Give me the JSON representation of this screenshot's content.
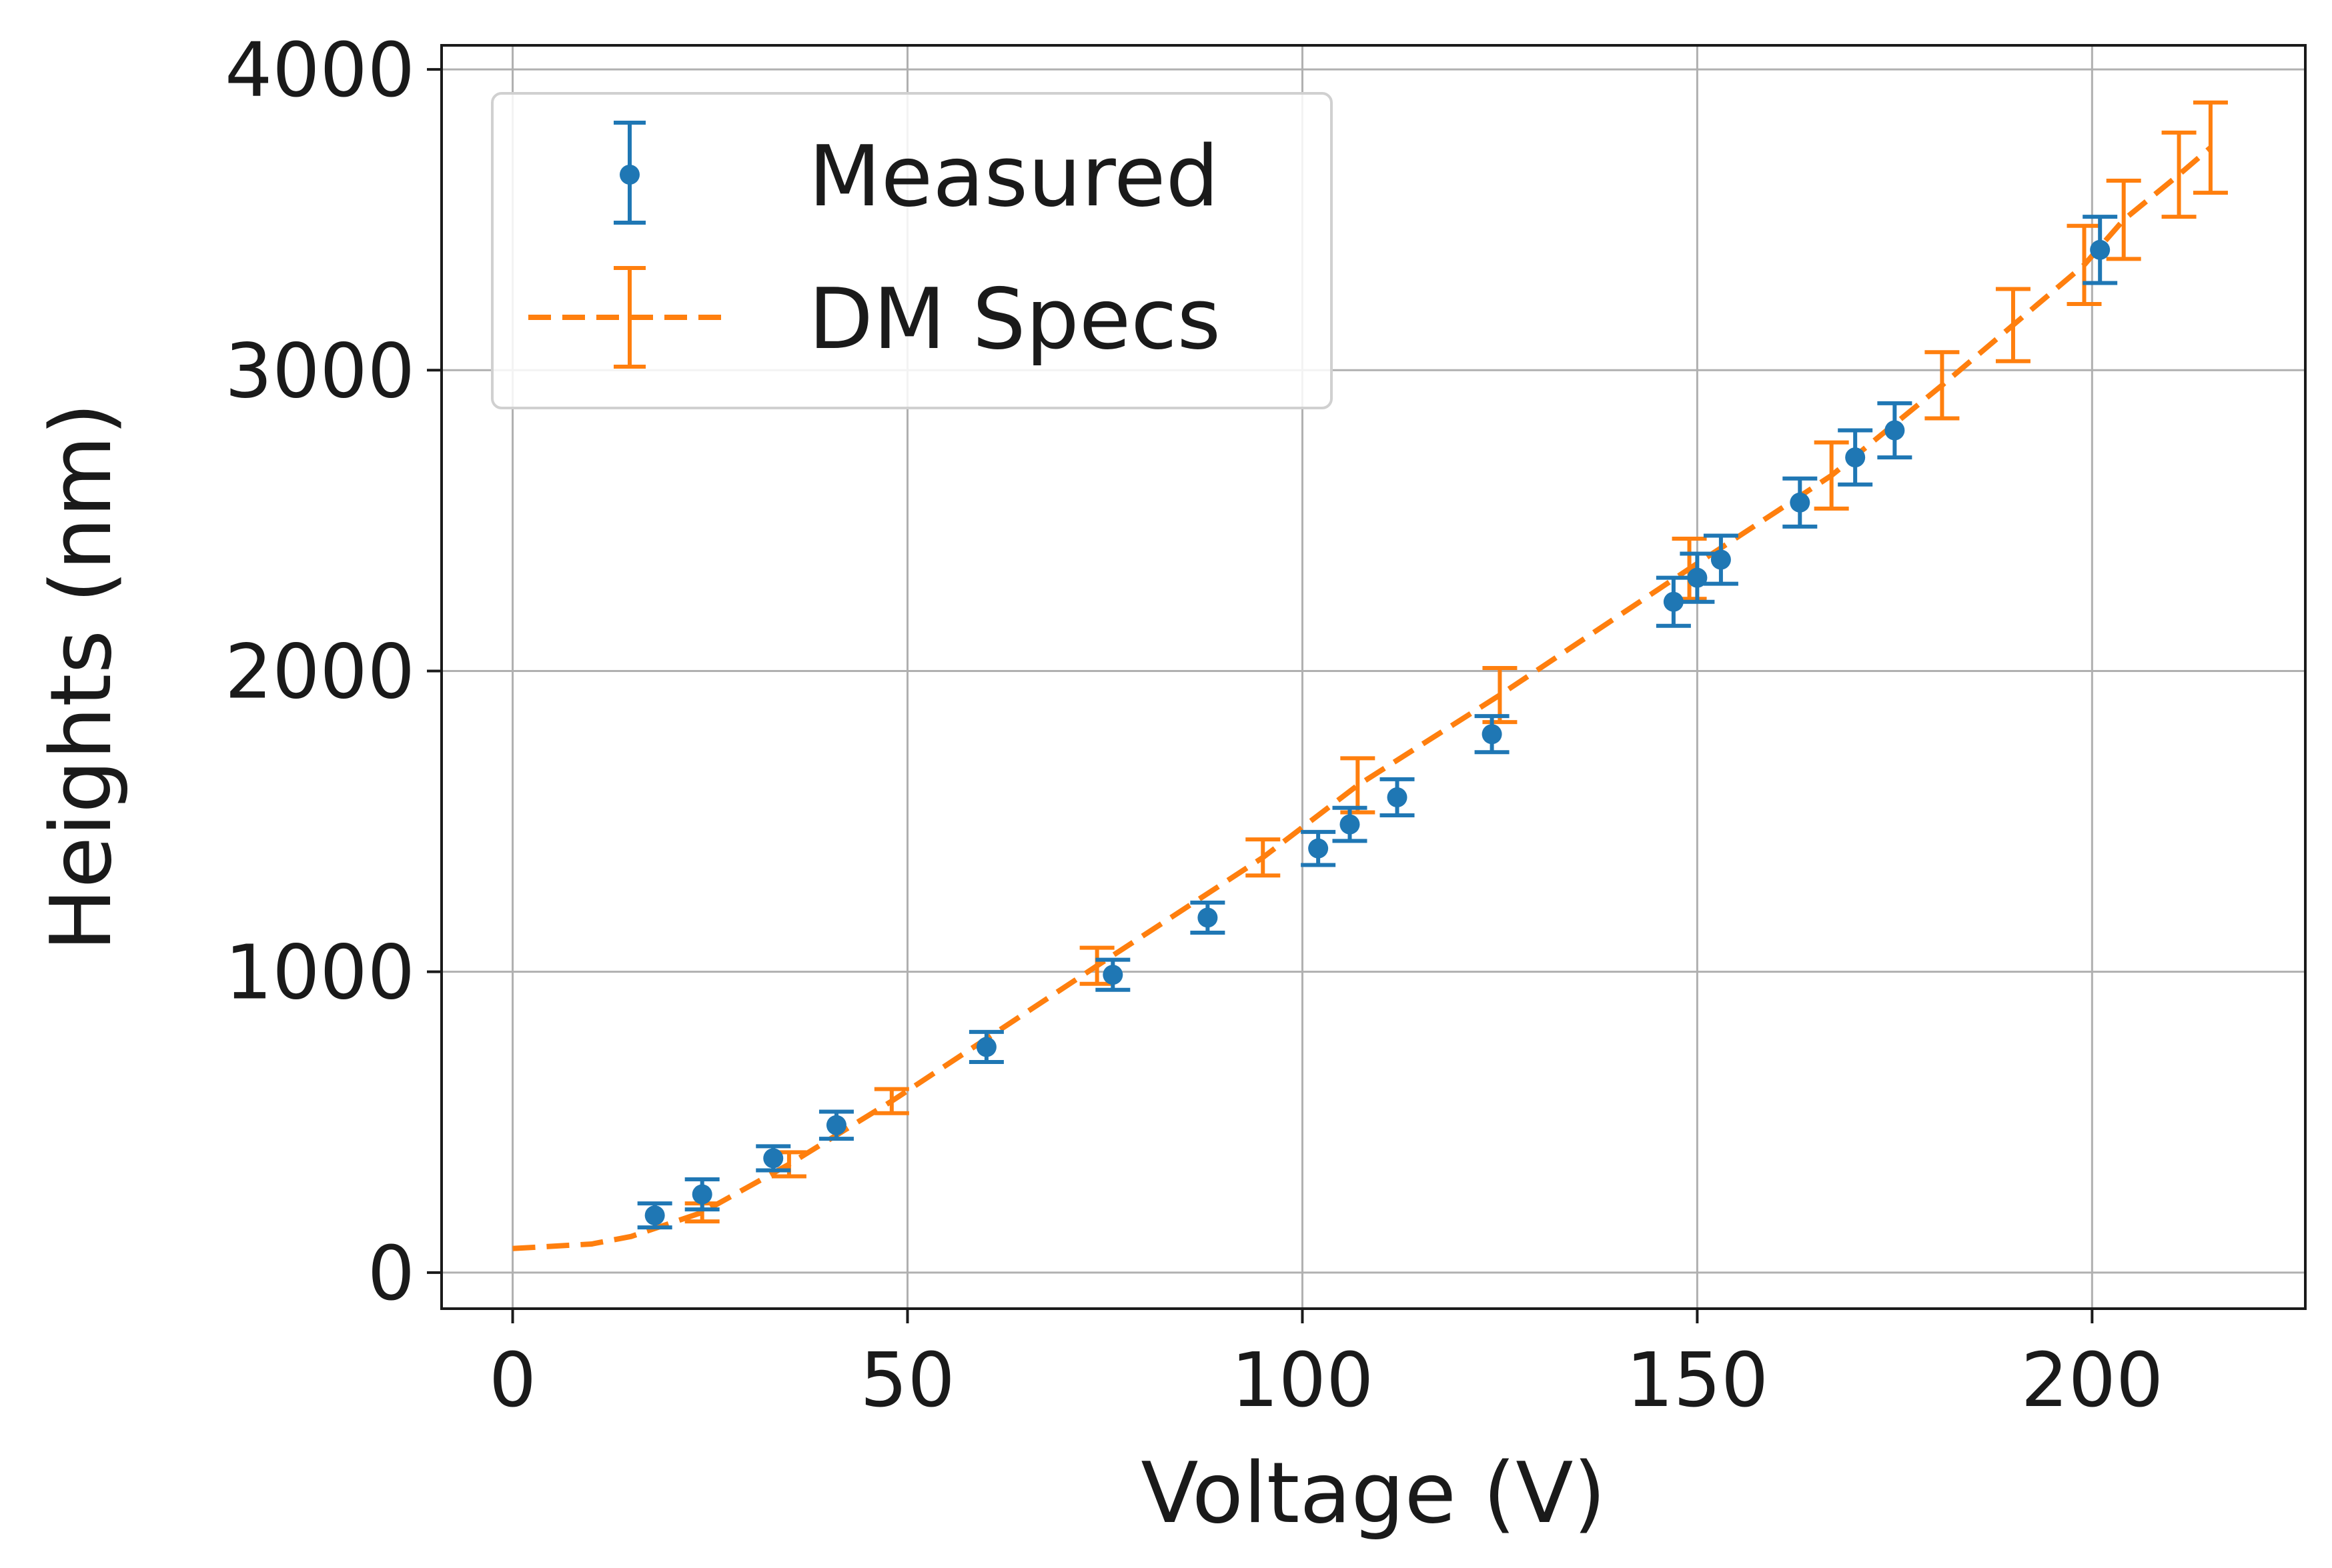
{
  "chart_data": {
    "type": "scatter",
    "title": "",
    "xlabel": "Voltage (V)",
    "ylabel": "Heights (nm)",
    "xlim": [
      -9,
      227
    ],
    "ylim": [
      -120,
      4080
    ],
    "xticks": [
      0,
      50,
      100,
      150,
      200
    ],
    "yticks": [
      0,
      1000,
      2000,
      3000,
      4000
    ],
    "grid": true,
    "legend_position": "top-left",
    "colors": {
      "measured": "#1f77b4",
      "dm_specs": "#ff7f0e"
    },
    "series": [
      {
        "name": "Measured",
        "style": "points-with-errorbars",
        "x": [
          18,
          24,
          33,
          41,
          60,
          76,
          88,
          102,
          106,
          112,
          124,
          147,
          150,
          153,
          163,
          170,
          175,
          201
        ],
        "y": [
          190,
          260,
          380,
          490,
          750,
          990,
          1180,
          1410,
          1490,
          1580,
          1790,
          2230,
          2310,
          2370,
          2560,
          2710,
          2800,
          3400
        ],
        "error": [
          40,
          50,
          40,
          45,
          50,
          50,
          50,
          55,
          55,
          60,
          60,
          80,
          80,
          80,
          80,
          90,
          90,
          110
        ]
      },
      {
        "name": "DM Specs",
        "style": "dashed-line-with-errorbars",
        "x": [
          0,
          10,
          15,
          24,
          35,
          48,
          74,
          95,
          107,
          125,
          149,
          167,
          181,
          190,
          199,
          204,
          211,
          215
        ],
        "y": [
          80,
          95,
          120,
          200,
          360,
          570,
          1020,
          1380,
          1620,
          1920,
          2340,
          2650,
          2950,
          3150,
          3350,
          3500,
          3650,
          3740
        ],
        "error": [
          10,
          15,
          20,
          30,
          40,
          40,
          60,
          60,
          90,
          90,
          100,
          110,
          110,
          120,
          130,
          130,
          140,
          150
        ],
        "error_x_indices": [
          3,
          4,
          5,
          6,
          7,
          8,
          9,
          10,
          11,
          12,
          13,
          14,
          15,
          16,
          17
        ]
      }
    ]
  }
}
